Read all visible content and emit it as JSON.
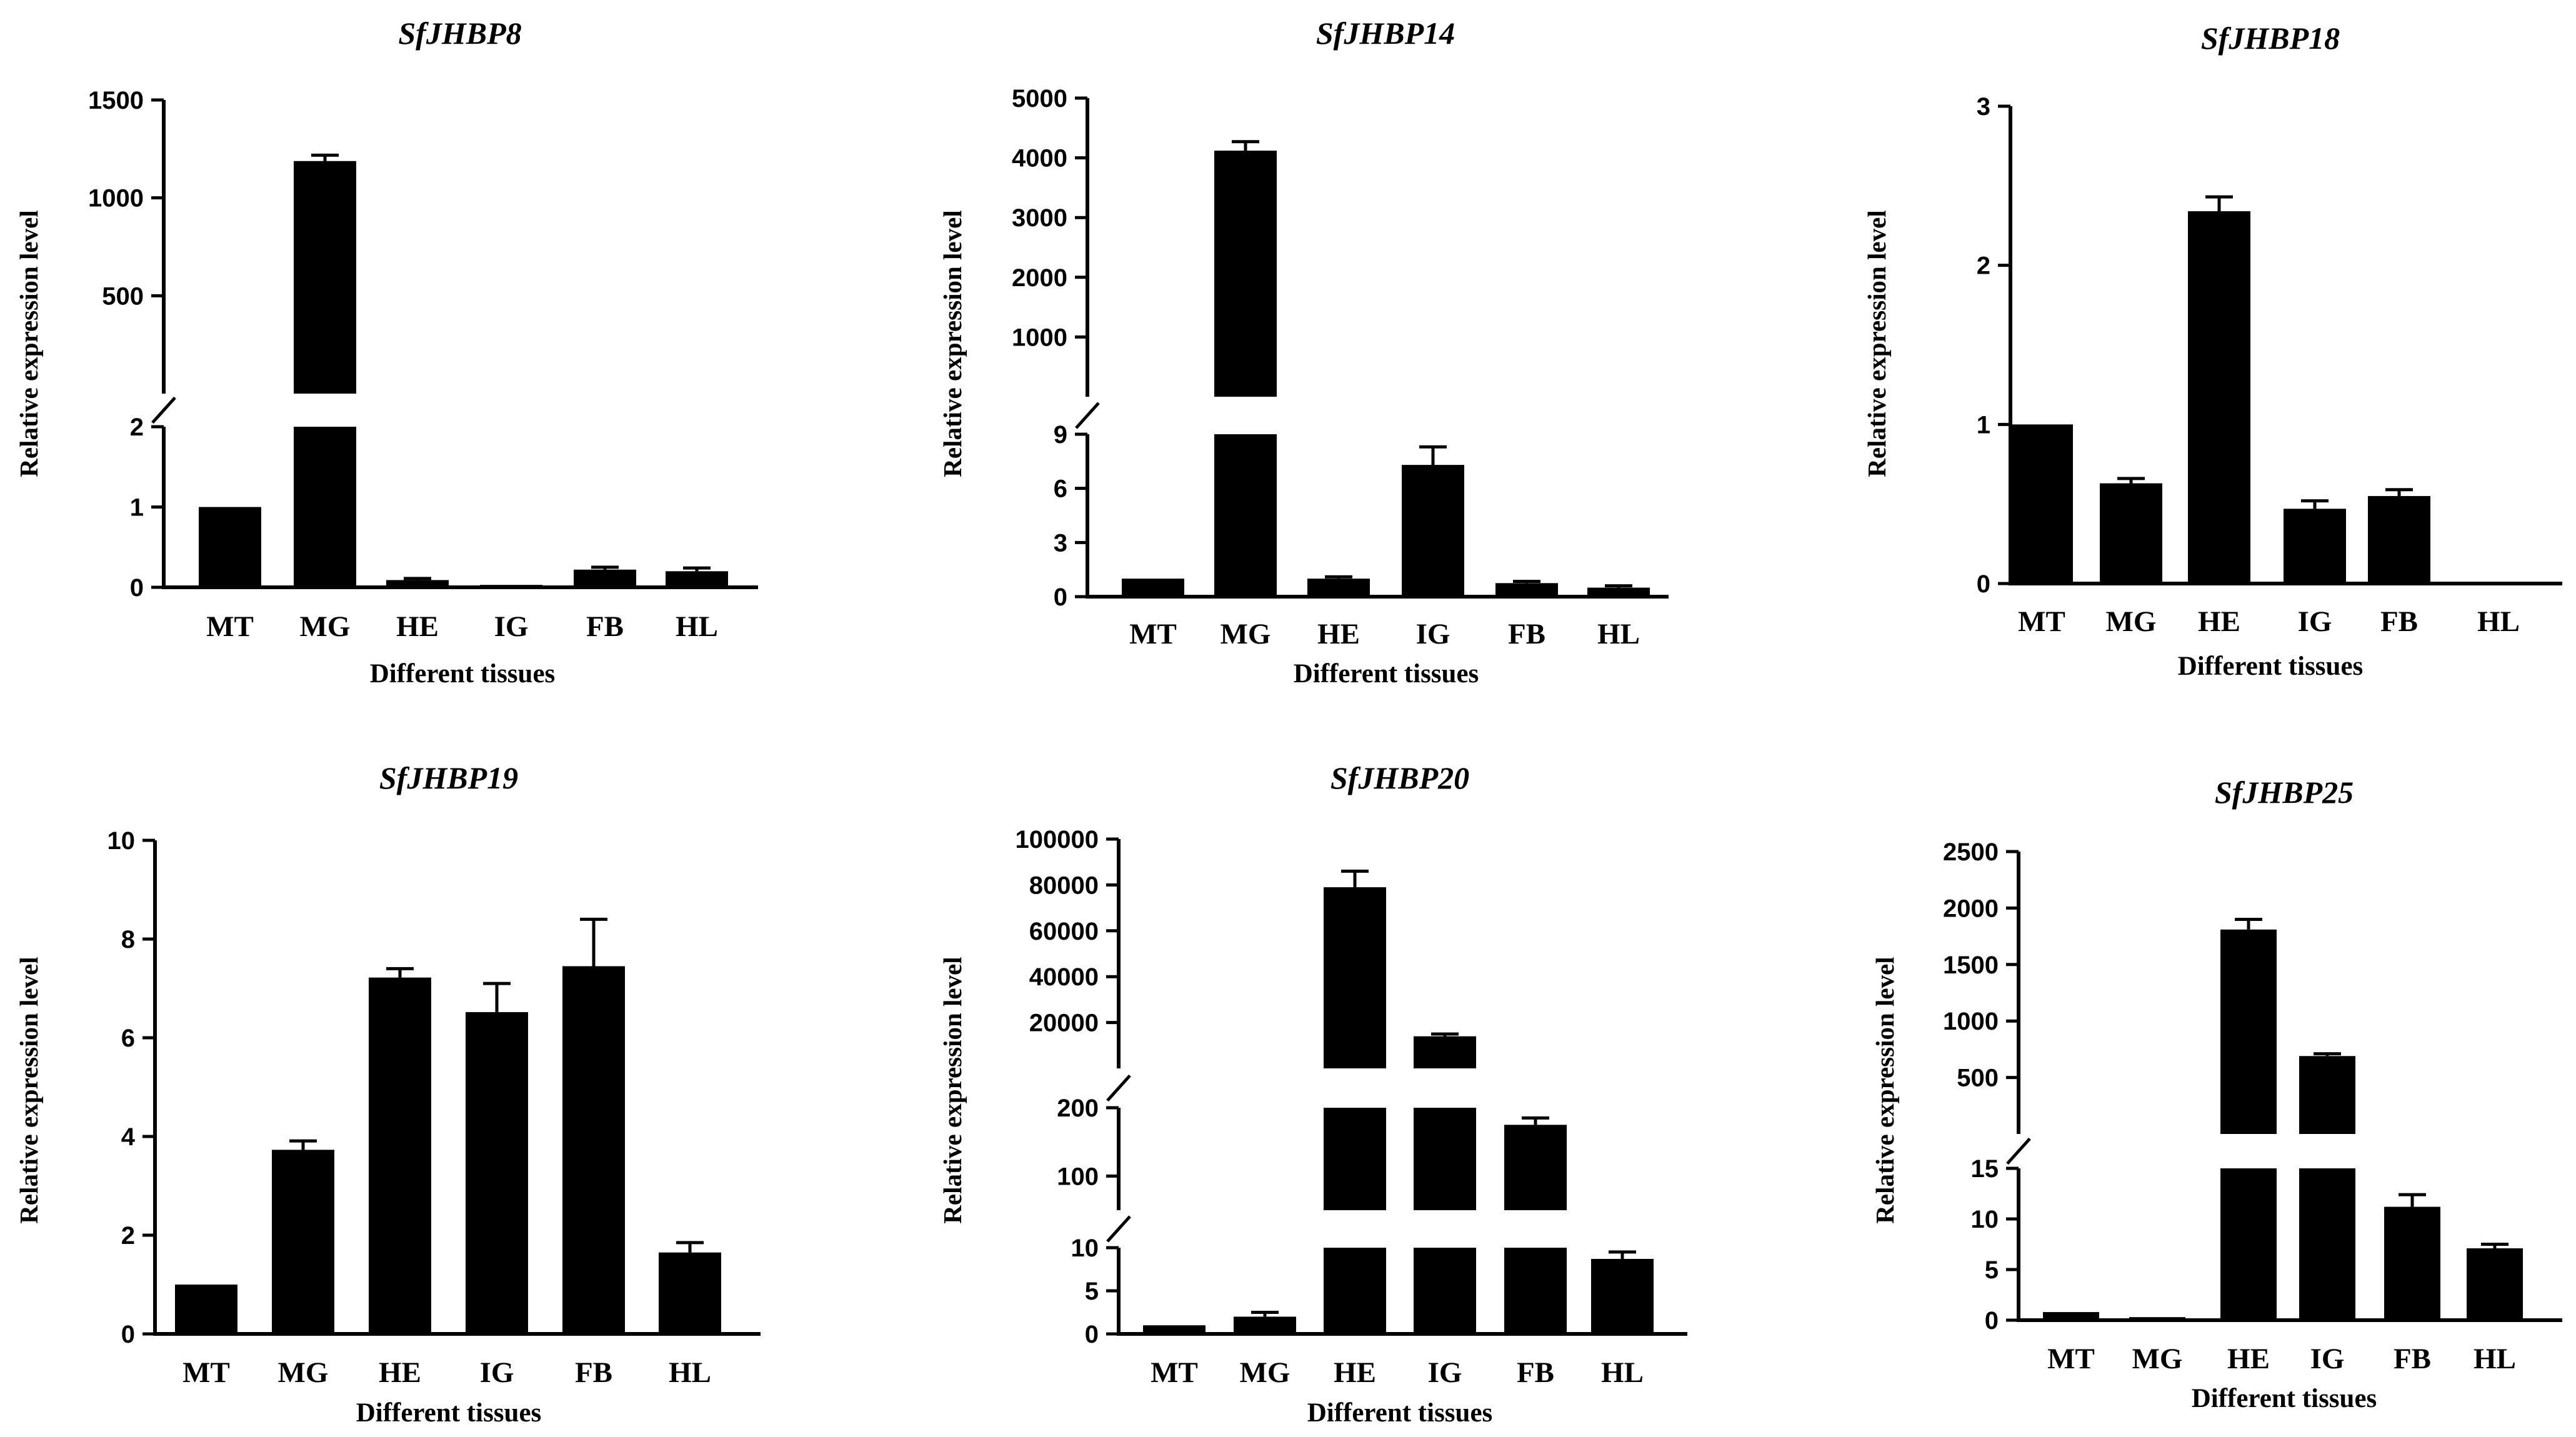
{
  "chart_data": [
    {
      "type": "bar",
      "title": "SfJHBP8",
      "xlabel": "Different tissues",
      "ylabel": "Relative expression level",
      "categories": [
        "MT",
        "MG",
        "HE",
        "IG",
        "FB",
        "HL"
      ],
      "values": [
        1.0,
        1188,
        0.09,
        0.03,
        0.22,
        0.2
      ],
      "errors": [
        0.0,
        30,
        0.02,
        0.0,
        0.03,
        0.04
      ],
      "segments": [
        {
          "range": [
            0,
            2
          ],
          "ticks": [
            0,
            1,
            2
          ],
          "tick_labels": [
            "0",
            "1",
            "2"
          ]
        },
        {
          "range": [
            0,
            1500
          ],
          "ticks": [
            500,
            1000,
            1500
          ],
          "tick_labels": [
            "500",
            "1000",
            "1500"
          ]
        }
      ]
    },
    {
      "type": "bar",
      "title": "SfJHBP14",
      "xlabel": "Different tissues",
      "ylabel": "Relative expression level",
      "categories": [
        "MT",
        "MG",
        "HE",
        "IG",
        "FB",
        "HL"
      ],
      "values": [
        1.0,
        4120,
        1.0,
        7.3,
        0.75,
        0.5
      ],
      "errors": [
        0.0,
        150,
        0.1,
        1.0,
        0.1,
        0.1
      ],
      "segments": [
        {
          "range": [
            0,
            9
          ],
          "ticks": [
            0,
            3,
            6,
            9
          ],
          "tick_labels": [
            "0",
            "3",
            "6",
            "9"
          ]
        },
        {
          "range": [
            0,
            5000
          ],
          "ticks": [
            1000,
            2000,
            3000,
            4000,
            5000
          ],
          "tick_labels": [
            "1000",
            "2000",
            "3000",
            "4000",
            "5000"
          ]
        }
      ]
    },
    {
      "type": "bar",
      "title": "SfJHBP18",
      "xlabel": "Different tissues",
      "ylabel": "Relative expression level",
      "categories": [
        "MT",
        "MG",
        "HE",
        "IG",
        "FB",
        "HL"
      ],
      "values": [
        1.0,
        0.63,
        2.34,
        0.47,
        0.55,
        0.005
      ],
      "errors": [
        0.0,
        0.03,
        0.09,
        0.05,
        0.04,
        0.0
      ],
      "segments": [
        {
          "range": [
            0,
            3
          ],
          "ticks": [
            0,
            1,
            2,
            3
          ],
          "tick_labels": [
            "0",
            "1",
            "2",
            "3"
          ]
        }
      ]
    },
    {
      "type": "bar",
      "title": "SfJHBP19",
      "xlabel": "Different tissues",
      "ylabel": "Relative expression level",
      "categories": [
        "MT",
        "MG",
        "HE",
        "IG",
        "FB",
        "HL"
      ],
      "values": [
        1.0,
        3.73,
        7.22,
        6.52,
        7.45,
        1.65
      ],
      "errors": [
        0.0,
        0.18,
        0.18,
        0.58,
        0.95,
        0.2
      ],
      "segments": [
        {
          "range": [
            0,
            10
          ],
          "ticks": [
            0,
            2,
            4,
            6,
            8,
            10
          ],
          "tick_labels": [
            "0",
            "2",
            "4",
            "6",
            "8",
            "10"
          ]
        }
      ]
    },
    {
      "type": "bar",
      "title": "SfJHBP20",
      "xlabel": "Different tissues",
      "ylabel": "Relative expression level",
      "categories": [
        "MT",
        "MG",
        "HE",
        "IG",
        "FB",
        "HL"
      ],
      "values": [
        1.0,
        2.0,
        79000,
        14000,
        175,
        8.7
      ],
      "errors": [
        0.0,
        0.5,
        7000,
        1000,
        10,
        0.8
      ],
      "segments": [
        {
          "range": [
            0,
            10
          ],
          "ticks": [
            0,
            5,
            10
          ],
          "tick_labels": [
            "0",
            "5",
            "10"
          ]
        },
        {
          "range": [
            50,
            200
          ],
          "ticks": [
            100,
            200
          ],
          "tick_labels": [
            "100",
            "200"
          ]
        },
        {
          "range": [
            0,
            100000
          ],
          "ticks": [
            20000,
            40000,
            60000,
            80000,
            100000
          ],
          "tick_labels": [
            "20000",
            "40000",
            "60000",
            "80000",
            "100000"
          ]
        }
      ]
    },
    {
      "type": "bar",
      "title": "SfJHBP25",
      "xlabel": "Different tissues",
      "ylabel": "Relative expression level",
      "categories": [
        "MT",
        "MG",
        "HE",
        "IG",
        "FB",
        "HL"
      ],
      "values": [
        0.8,
        0.3,
        1810,
        690,
        11.2,
        7.1
      ],
      "errors": [
        0.0,
        0.0,
        90,
        20,
        1.2,
        0.4
      ],
      "segments": [
        {
          "range": [
            0,
            15
          ],
          "ticks": [
            0,
            5,
            10,
            15
          ],
          "tick_labels": [
            "0",
            "5",
            "10",
            "15"
          ]
        },
        {
          "range": [
            0,
            2500
          ],
          "ticks": [
            500,
            1000,
            1500,
            2000,
            2500
          ],
          "tick_labels": [
            "500",
            "1000",
            "1500",
            "2000",
            "2500"
          ]
        }
      ]
    }
  ]
}
